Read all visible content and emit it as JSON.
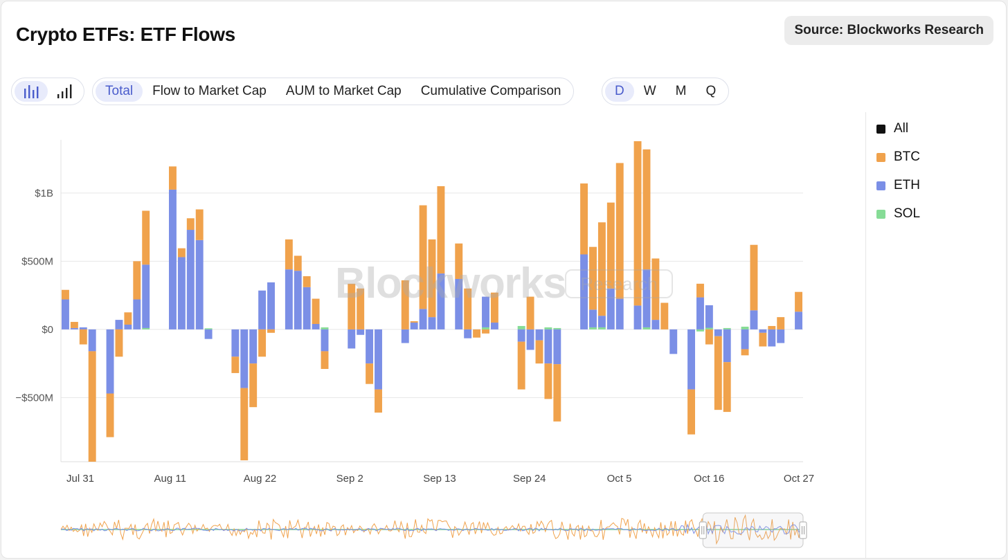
{
  "header": {
    "title": "Crypto ETFs: ETF Flows",
    "source_label": "Source: Blockworks Research"
  },
  "toolbar": {
    "chart_type_icons": [
      "bar-chart-icon",
      "signal-bars-icon"
    ],
    "views": [
      {
        "label": "Total",
        "active": true
      },
      {
        "label": "Flow to Market Cap",
        "active": false
      },
      {
        "label": "AUM to Market Cap",
        "active": false
      },
      {
        "label": "Cumulative Comparison",
        "active": false
      }
    ],
    "periods": [
      {
        "label": "D",
        "active": true
      },
      {
        "label": "W",
        "active": false
      },
      {
        "label": "M",
        "active": false
      },
      {
        "label": "Q",
        "active": false
      }
    ]
  },
  "watermark": {
    "brand": "Blockworks",
    "tag": "Research"
  },
  "legend": [
    {
      "label": "All",
      "color": "#111111"
    },
    {
      "label": "BTC",
      "color": "#f0a24c"
    },
    {
      "label": "ETH",
      "color": "#7b8fe6"
    },
    {
      "label": "SOL",
      "color": "#86dc96"
    }
  ],
  "chart_data": {
    "type": "bar",
    "stacked": true,
    "title": "Crypto ETFs: ETF Flows",
    "units": "USD",
    "ylim": [
      -970,
      1390
    ],
    "yticks": [
      {
        "value": 1000,
        "label": "$1B"
      },
      {
        "value": 500,
        "label": "$500M"
      },
      {
        "value": 0,
        "label": "$0"
      },
      {
        "value": -500,
        "label": "−$500M"
      }
    ],
    "xtick_labels": [
      "Jul 31",
      "Aug 11",
      "Aug 22",
      "Sep 2",
      "Sep 13",
      "Sep 24",
      "Oct 5",
      "Oct 16",
      "Oct 27"
    ],
    "series_colors": {
      "BTC": "#f0a24c",
      "ETH": "#7b8fe6",
      "SOL": "#86dc96"
    },
    "bars": [
      {
        "ETH": 220,
        "BTC": 70,
        "SOL": 0
      },
      {
        "ETH": 10,
        "BTC": 45,
        "SOL": 0
      },
      {
        "ETH": 15,
        "BTC": -110,
        "SOL": 0
      },
      {
        "ETH": -160,
        "BTC": -810,
        "SOL": 0
      },
      null,
      {
        "ETH": -470,
        "BTC": -320,
        "SOL": 0
      },
      {
        "ETH": 70,
        "BTC": -200,
        "SOL": 0
      },
      {
        "ETH": 35,
        "BTC": 90,
        "SOL": 0
      },
      {
        "ETH": 220,
        "BTC": 280,
        "SOL": 0
      },
      {
        "ETH": 465,
        "BTC": 395,
        "SOL": 10
      },
      null,
      null,
      {
        "ETH": 1025,
        "BTC": 170,
        "SOL": 0
      },
      {
        "ETH": 530,
        "BTC": 65,
        "SOL": 0
      },
      {
        "ETH": 730,
        "BTC": 85,
        "SOL": 0
      },
      {
        "ETH": 655,
        "BTC": 225,
        "SOL": 0
      },
      {
        "ETH": -70,
        "BTC": 0,
        "SOL": 8
      },
      null,
      null,
      {
        "ETH": -200,
        "BTC": -120,
        "SOL": 0
      },
      {
        "ETH": -430,
        "BTC": -530,
        "SOL": 0
      },
      {
        "ETH": -250,
        "BTC": -320,
        "SOL": 0
      },
      {
        "ETH": 285,
        "BTC": -200,
        "SOL": 0
      },
      {
        "ETH": 345,
        "BTC": -25,
        "SOL": 0
      },
      null,
      {
        "ETH": 440,
        "BTC": 220,
        "SOL": 0
      },
      {
        "ETH": 430,
        "BTC": 110,
        "SOL": 0
      },
      {
        "ETH": 310,
        "BTC": 80,
        "SOL": 0
      },
      {
        "ETH": 40,
        "BTC": 185,
        "SOL": 0
      },
      {
        "ETH": -160,
        "BTC": -130,
        "SOL": 15
      },
      null,
      null,
      {
        "ETH": -140,
        "BTC": 335,
        "SOL": 0
      },
      {
        "ETH": -40,
        "BTC": 300,
        "SOL": 0
      },
      {
        "ETH": -250,
        "BTC": -150,
        "SOL": 0
      },
      {
        "ETH": -440,
        "BTC": -170,
        "SOL": 0
      },
      null,
      null,
      {
        "ETH": -100,
        "BTC": 360,
        "SOL": 0
      },
      {
        "ETH": 50,
        "BTC": 10,
        "SOL": 0
      },
      {
        "ETH": 150,
        "BTC": 760,
        "SOL": 0
      },
      {
        "ETH": 90,
        "BTC": 570,
        "SOL": 0
      },
      {
        "ETH": 410,
        "BTC": 640,
        "SOL": 0
      },
      null,
      {
        "ETH": 370,
        "BTC": 260,
        "SOL": 0
      },
      {
        "ETH": -65,
        "BTC": 300,
        "SOL": 0
      },
      {
        "ETH": 0,
        "BTC": -60,
        "SOL": 0
      },
      {
        "ETH": 225,
        "BTC": -30,
        "SOL": 15
      },
      {
        "ETH": 50,
        "BTC": 220,
        "SOL": 0
      },
      null,
      null,
      {
        "ETH": -90,
        "BTC": -350,
        "SOL": 25
      },
      {
        "ETH": -150,
        "BTC": 240,
        "SOL": 0
      },
      {
        "ETH": -80,
        "BTC": -170,
        "SOL": 0
      },
      {
        "ETH": -250,
        "BTC": -260,
        "SOL": 15
      },
      {
        "ETH": -255,
        "BTC": -420,
        "SOL": 10
      },
      null,
      null,
      {
        "ETH": 550,
        "BTC": 520,
        "SOL": 0
      },
      {
        "ETH": 130,
        "BTC": 460,
        "SOL": 15
      },
      {
        "ETH": 85,
        "BTC": 685,
        "SOL": 15
      },
      {
        "ETH": 300,
        "BTC": 630,
        "SOL": 0
      },
      {
        "ETH": 225,
        "BTC": 995,
        "SOL": 0
      },
      null,
      {
        "ETH": 175,
        "BTC": 1205,
        "SOL": 0
      },
      {
        "ETH": 425,
        "BTC": 880,
        "SOL": 15
      },
      {
        "ETH": 70,
        "BTC": 450,
        "SOL": 0
      },
      {
        "ETH": 0,
        "BTC": 195,
        "SOL": 0
      },
      {
        "ETH": -180,
        "BTC": 0,
        "SOL": 0
      },
      null,
      {
        "ETH": -440,
        "BTC": -330,
        "SOL": 0
      },
      {
        "ETH": 235,
        "BTC": 100,
        "SOL": -15
      },
      {
        "ETH": 165,
        "BTC": -110,
        "SOL": 12
      },
      {
        "ETH": -50,
        "BTC": -540,
        "SOL": 0
      },
      {
        "ETH": -240,
        "BTC": -365,
        "SOL": 10
      },
      null,
      {
        "ETH": -145,
        "BTC": -45,
        "SOL": 20
      },
      {
        "ETH": 140,
        "BTC": 480,
        "SOL": 0
      },
      {
        "ETH": -25,
        "BTC": -100,
        "SOL": 0
      },
      {
        "ETH": -125,
        "BTC": 25,
        "SOL": 0
      },
      {
        "ETH": -100,
        "BTC": 90,
        "SOL": 0
      },
      null,
      {
        "ETH": 130,
        "BTC": 145,
        "SOL": 0
      }
    ]
  },
  "navigator": {
    "selection_start_fraction": 0.865,
    "selection_end_fraction": 1.0
  }
}
